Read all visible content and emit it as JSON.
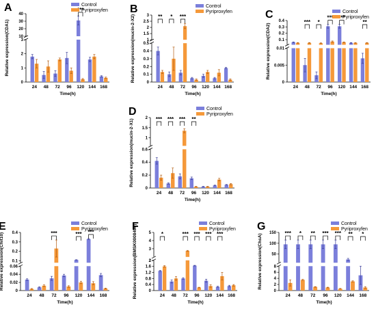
{
  "colors": {
    "control": "#7b7fdb",
    "pyriproxyfen": "#f5993a",
    "axis": "#000000"
  },
  "x_unit_label": "Time(h)",
  "chart_data": [
    {
      "type": "bar",
      "panel": "A",
      "title": "",
      "xlabel": "Time(h)",
      "ylabel": "Relative expression(CDA1)",
      "categories": [
        "24",
        "48",
        "72",
        "96",
        "120",
        "144",
        "168"
      ],
      "series": [
        {
          "name": "Control",
          "values": [
            1.8,
            0.5,
            0.6,
            1.7,
            31,
            1.6,
            0.4
          ],
          "errors": [
            0.15,
            0.25,
            0.2,
            0.4,
            6,
            0.15,
            0.05
          ]
        },
        {
          "name": "Pyriproxyfen",
          "values": [
            1.3,
            1.1,
            1.6,
            0.8,
            0.2,
            1.8,
            0.3
          ],
          "errors": [
            0.3,
            0.4,
            0.1,
            0.2,
            0.05,
            0.15,
            0.05
          ]
        }
      ],
      "yaxis": {
        "segments": [
          {
            "range": [
              0,
              3
            ],
            "ticks": [
              0,
              1,
              2,
              3
            ]
          },
          {
            "range": [
              10,
              40
            ],
            "ticks": [
              10,
              20,
              30,
              40
            ]
          }
        ]
      },
      "significance": [
        {
          "category": "120",
          "label": "***"
        }
      ],
      "legend": "top-right"
    },
    {
      "type": "bar",
      "panel": "B",
      "title": "",
      "xlabel": "Time(h)",
      "ylabel": "Relative expression(mucin-2-X2)",
      "categories": [
        "24",
        "48",
        "72",
        "96",
        "120",
        "144",
        "168"
      ],
      "series": [
        {
          "name": "Control",
          "values": [
            0.4,
            0.1,
            0.12,
            0.05,
            0.08,
            0.05,
            0.18
          ],
          "errors": [
            0.05,
            0.03,
            0.03,
            0.01,
            0.02,
            0.01,
            0.01
          ]
        },
        {
          "name": "Pyriproxyfen",
          "values": [
            0.13,
            0.3,
            2.1,
            0.03,
            0.13,
            0.12,
            0.03
          ],
          "errors": [
            0.02,
            0.15,
            0.2,
            0.01,
            0.02,
            0.04,
            0.01
          ]
        }
      ],
      "yaxis": {
        "segments": [
          {
            "range": [
              0,
              0.5
            ],
            "ticks": [
              0.0,
              0.1,
              0.2,
              0.3,
              0.4,
              0.5
            ]
          },
          {
            "range": [
              1.0,
              3.0
            ],
            "ticks": [
              1.0,
              1.5,
              2.0,
              2.5,
              3.0
            ]
          }
        ]
      },
      "significance": [
        {
          "category": "24",
          "label": "**"
        },
        {
          "category": "48",
          "label": "*"
        },
        {
          "category": "72",
          "label": "***"
        }
      ],
      "legend": "top-right"
    },
    {
      "type": "bar",
      "panel": "C",
      "title": "",
      "xlabel": "Time(h)",
      "ylabel": "Relative expression(CDA2)",
      "categories": [
        "24",
        "48",
        "72",
        "96",
        "120",
        "144",
        "168"
      ],
      "series": [
        {
          "name": "Control",
          "values": [
            0.06,
            0.005,
            0.002,
            0.31,
            0.31,
            0.05,
            0.007
          ],
          "errors": [
            0.005,
            0.002,
            0.001,
            0.03,
            0.03,
            0.005,
            0.0015
          ]
        },
        {
          "name": "Pyriproxyfen",
          "values": [
            0.05,
            0.05,
            0.045,
            0.07,
            0.06,
            0.05,
            0.05
          ],
          "errors": [
            0.005,
            0.005,
            0.005,
            0.01,
            0.005,
            0.005,
            0.005
          ]
        }
      ],
      "yaxis": {
        "segments": [
          {
            "range": [
              0,
              0.01
            ],
            "ticks": [
              0.0,
              0.005,
              0.01
            ]
          },
          {
            "range": [
              0.02,
              0.4
            ],
            "ticks": [
              0.1,
              0.2,
              0.3,
              0.4
            ]
          }
        ]
      },
      "significance": [
        {
          "category": "48",
          "label": "***"
        },
        {
          "category": "72",
          "label": "*"
        },
        {
          "category": "96",
          "label": "***"
        },
        {
          "category": "120",
          "label": "***"
        },
        {
          "category": "168",
          "label": "**"
        }
      ],
      "legend": "top-right"
    },
    {
      "type": "bar",
      "panel": "D",
      "title": "",
      "xlabel": "Time(h)",
      "ylabel": "Relative expression(mucin-2-X1)",
      "categories": [
        "24",
        "48",
        "72",
        "96",
        "120",
        "144",
        "168"
      ],
      "series": [
        {
          "name": "Control",
          "values": [
            0.42,
            0.07,
            0.18,
            0.15,
            0.02,
            0.04,
            0.05
          ],
          "errors": [
            0.05,
            0.01,
            0.04,
            0.02,
            0.005,
            0.005,
            0.005
          ]
        },
        {
          "name": "Pyriproxyfen",
          "values": [
            0.16,
            0.23,
            1.35,
            0.02,
            0.02,
            0.13,
            0.06
          ],
          "errors": [
            0.04,
            0.08,
            0.1,
            0.005,
            0.005,
            0.02,
            0.01
          ]
        }
      ],
      "yaxis": {
        "segments": [
          {
            "range": [
              0,
              0.6
            ],
            "ticks": [
              0.0,
              0.2,
              0.4,
              0.6
            ]
          },
          {
            "range": [
              0.6,
              2.0
            ],
            "ticks": [
              1.0,
              1.5,
              2.0
            ]
          }
        ]
      },
      "significance": [
        {
          "category": "24",
          "label": "***"
        },
        {
          "category": "48",
          "label": "***"
        },
        {
          "category": "72",
          "label": "***"
        },
        {
          "category": "96",
          "label": "**"
        }
      ],
      "legend": "top-right"
    },
    {
      "type": "bar",
      "panel": "E",
      "title": "",
      "xlabel": "Time(h)",
      "ylabel": "Relative expression(Chit10)",
      "categories": [
        "24",
        "48",
        "72",
        "96",
        "120",
        "144",
        "168"
      ],
      "series": [
        {
          "name": "Control",
          "values": [
            0.027,
            0.008,
            0.03,
            0.037,
            0.11,
            0.33,
            0.038
          ],
          "errors": [
            0.002,
            0.001,
            0.005,
            0.003,
            0.002,
            0.005,
            0.004
          ]
        },
        {
          "name": "Pyriproxyfen",
          "values": [
            0.004,
            0.012,
            0.23,
            0.01,
            0.02,
            0.018,
            0.005
          ],
          "errors": [
            0.001,
            0.002,
            0.09,
            0.002,
            0.003,
            0.004,
            0.001
          ]
        }
      ],
      "yaxis": {
        "segments": [
          {
            "range": [
              0,
              0.06
            ],
            "ticks": [
              0.0,
              0.02,
              0.04,
              0.06
            ]
          },
          {
            "range": [
              0.08,
              0.4
            ],
            "ticks": [
              0.1,
              0.2,
              0.3,
              0.4
            ]
          }
        ]
      },
      "significance": [
        {
          "category": "72",
          "label": "***"
        },
        {
          "category": "120",
          "label": "***"
        },
        {
          "category": "144",
          "label": "***"
        }
      ],
      "legend": "top-right"
    },
    {
      "type": "bar",
      "panel": "F",
      "title": "",
      "xlabel": "Time(h)",
      "ylabel": "Relative expression(BMSK0008490)",
      "categories": [
        "24",
        "48",
        "72",
        "96",
        "120",
        "144",
        "168"
      ],
      "series": [
        {
          "name": "Control",
          "values": [
            1.3,
            0.6,
            0.8,
            1.65,
            0.65,
            0.25,
            0.3
          ],
          "errors": [
            0.04,
            0.1,
            0.05,
            0.02,
            0.1,
            0.03,
            0.05
          ]
        },
        {
          "name": "Pyriproxyfen",
          "values": [
            1.6,
            0.8,
            2.75,
            0.2,
            0.3,
            0.95,
            0.35
          ],
          "errors": [
            0.05,
            0.12,
            0.05,
            0.02,
            0.08,
            0.25,
            0.05
          ]
        }
      ],
      "yaxis": {
        "segments": [
          {
            "range": [
              0,
              2.0
            ],
            "ticks": [
              0.0,
              0.4,
              0.8,
              1.2,
              1.6,
              2.0
            ]
          },
          {
            "range": [
              2.0,
              5.0
            ],
            "ticks": [
              2,
              3,
              4,
              5
            ]
          }
        ]
      },
      "significance": [
        {
          "category": "24",
          "label": "*"
        },
        {
          "category": "72",
          "label": "***"
        },
        {
          "category": "96",
          "label": "***"
        },
        {
          "category": "120",
          "label": "***"
        },
        {
          "category": "144",
          "label": "***"
        }
      ],
      "legend": "top-right"
    },
    {
      "type": "bar",
      "panel": "G",
      "title": "",
      "xlabel": "Time(h)",
      "ylabel": "Relative expression(ChsA)",
      "categories": [
        "24",
        "48",
        "72",
        "96",
        "120",
        "144",
        "168"
      ],
      "series": [
        {
          "name": "Control",
          "values": [
            95,
            95,
            95,
            95,
            95,
            25,
            5
          ],
          "errors": [
            20,
            20,
            20,
            20,
            20,
            5,
            3
          ]
        },
        {
          "name": "Pyriproxyfen",
          "values": [
            2.5,
            3.5,
            1.2,
            1.0,
            0.6,
            3.0,
            1.0
          ],
          "errors": [
            1.0,
            0.2,
            0.1,
            0.1,
            0.1,
            0.2,
            0.3
          ]
        }
      ],
      "yaxis": {
        "segments": [
          {
            "range": [
              0,
              8
            ],
            "ticks": [
              0,
              2,
              4,
              6,
              8
            ]
          },
          {
            "range": [
              10,
              150
            ],
            "ticks": [
              50,
              100,
              150
            ]
          }
        ]
      },
      "significance": [
        {
          "category": "24",
          "label": "***"
        },
        {
          "category": "48",
          "label": "*"
        },
        {
          "category": "72",
          "label": "**"
        },
        {
          "category": "96",
          "label": "***"
        },
        {
          "category": "120",
          "label": "***"
        },
        {
          "category": "144",
          "label": "**"
        },
        {
          "category": "168",
          "label": "*"
        }
      ],
      "legend": "top-right"
    }
  ]
}
